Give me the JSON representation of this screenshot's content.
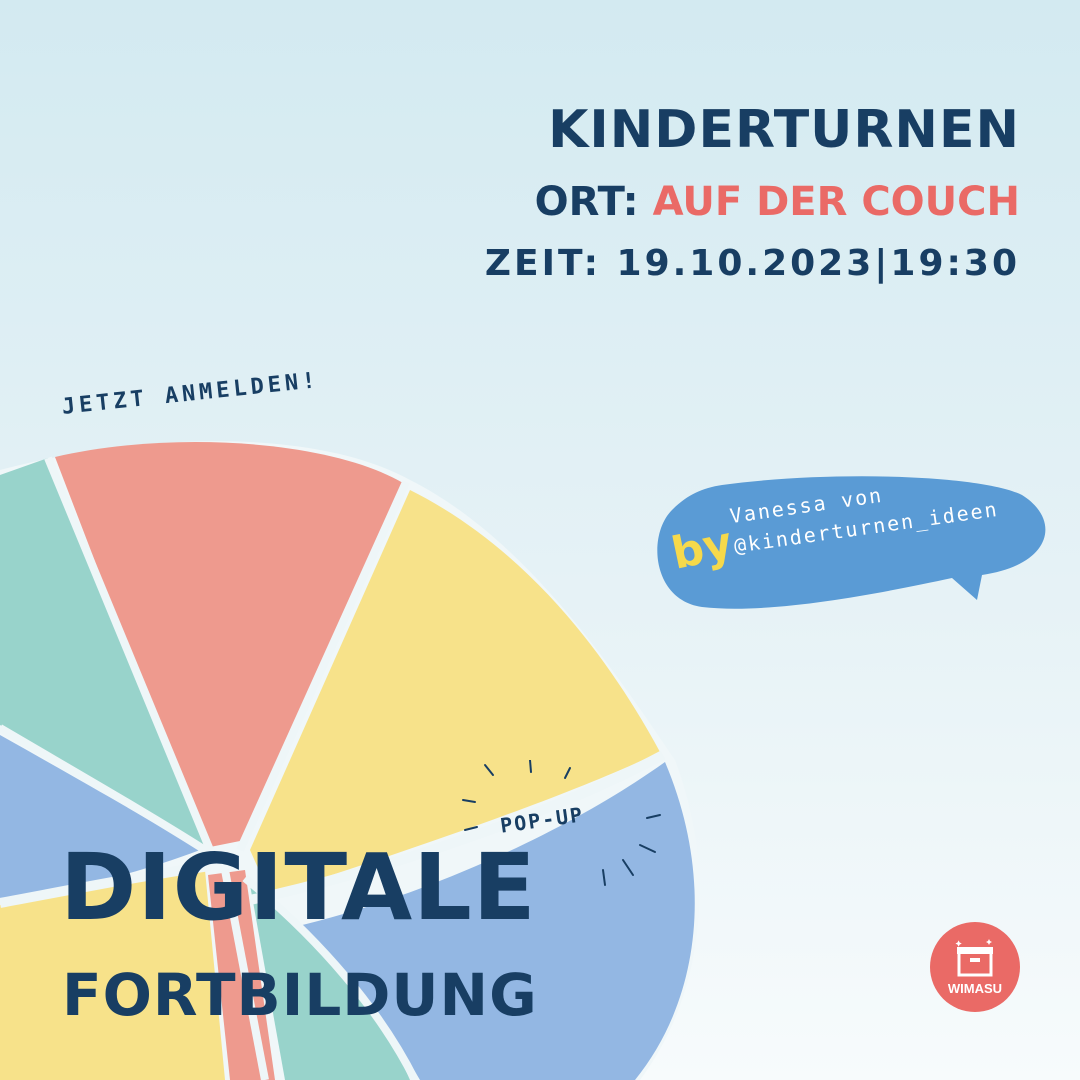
{
  "event": {
    "title": "KINDERTURNEN",
    "location_label": "ORT:",
    "location_value": "AUF DER COUCH",
    "time_label": "ZEIT:",
    "time_value": "19.10.2023|19:30"
  },
  "cta": "JETZT ANMELDEN!",
  "bubble": {
    "by": "by",
    "line1": "Vanessa von",
    "line2": "@kinderturnen_ideen"
  },
  "badge": "POP-UP",
  "headline": {
    "line1": "DIGITALE",
    "line2": "FORTBILDUNG"
  },
  "logo": {
    "text": "WIMASU",
    "icon": "box-icon"
  },
  "colors": {
    "navy": "#183e63",
    "coral": "#ea6a66",
    "salmon": "#ee9a8e",
    "yellow": "#f7e28a",
    "teal": "#98d3cb",
    "blue": "#93b7e3",
    "bubble": "#5a9bd5"
  }
}
